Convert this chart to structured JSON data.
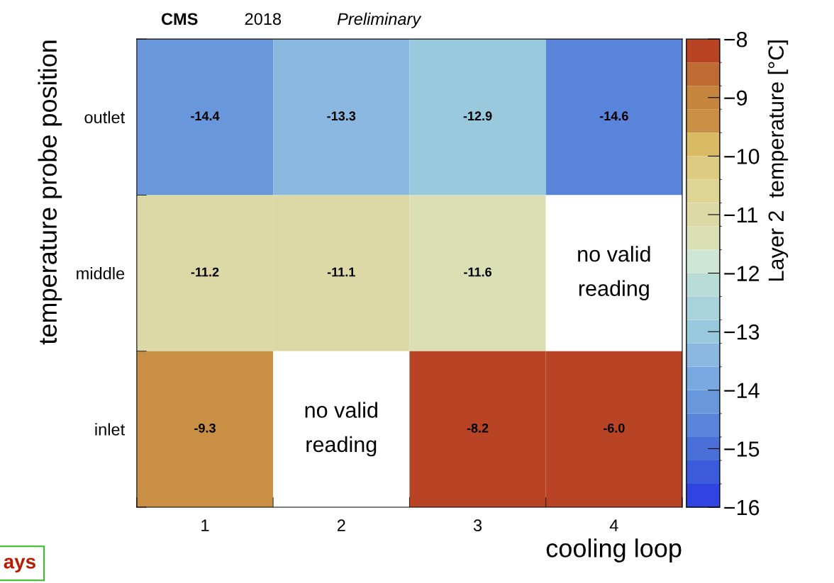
{
  "chart_data": {
    "type": "heatmap",
    "title": "CMS",
    "annotations": [
      "2018",
      "Preliminary",
      "ays"
    ],
    "xlabel": "cooling loop",
    "ylabel": "temperature probe position",
    "clabel": "Layer 2  temperature [°C]",
    "categories": [
      "1",
      "2",
      "3",
      "4"
    ],
    "y_categories": [
      "outlet",
      "middle",
      "inlet"
    ],
    "cells": [
      [
        -14.4,
        -13.3,
        -12.9,
        -14.6
      ],
      [
        -11.2,
        -11.1,
        -11.6,
        null
      ],
      [
        -9.3,
        null,
        -8.2,
        -6.0
      ]
    ],
    "cell_labels": [
      [
        "-14.4",
        "-13.3",
        "-12.9",
        "-14.6"
      ],
      [
        "-11.2",
        "-11.1",
        "-11.6",
        "no valid\nreading"
      ],
      [
        "-9.3",
        "no valid\nreading",
        "-8.2",
        "-6.0"
      ]
    ],
    "clim": [
      -16,
      -8
    ],
    "cticks": [
      {
        "value": -16,
        "label": "−16"
      },
      {
        "value": -15,
        "label": "−15"
      },
      {
        "value": -14,
        "label": "−14"
      },
      {
        "value": -13,
        "label": "−13"
      },
      {
        "value": -12,
        "label": "−12"
      },
      {
        "value": -11,
        "label": "−11"
      },
      {
        "value": -10,
        "label": "−10"
      },
      {
        "value": -9,
        "label": "−9"
      },
      {
        "value": -8,
        "label": "−8"
      }
    ],
    "colors": [
      "#2f44e0",
      "#3c5bdc",
      "#4a6fd8",
      "#5a83da",
      "#6897dc",
      "#7aa8e0",
      "#8bb8e0",
      "#99c9dd",
      "#a8d3da",
      "#b9dcd8",
      "#cde6d6",
      "#dadfb4",
      "#dcd9a6",
      "#ded595",
      "#dccb80",
      "#d9bb65",
      "#c98f44",
      "#c6853e",
      "#c06a34",
      "#b94425"
    ]
  }
}
